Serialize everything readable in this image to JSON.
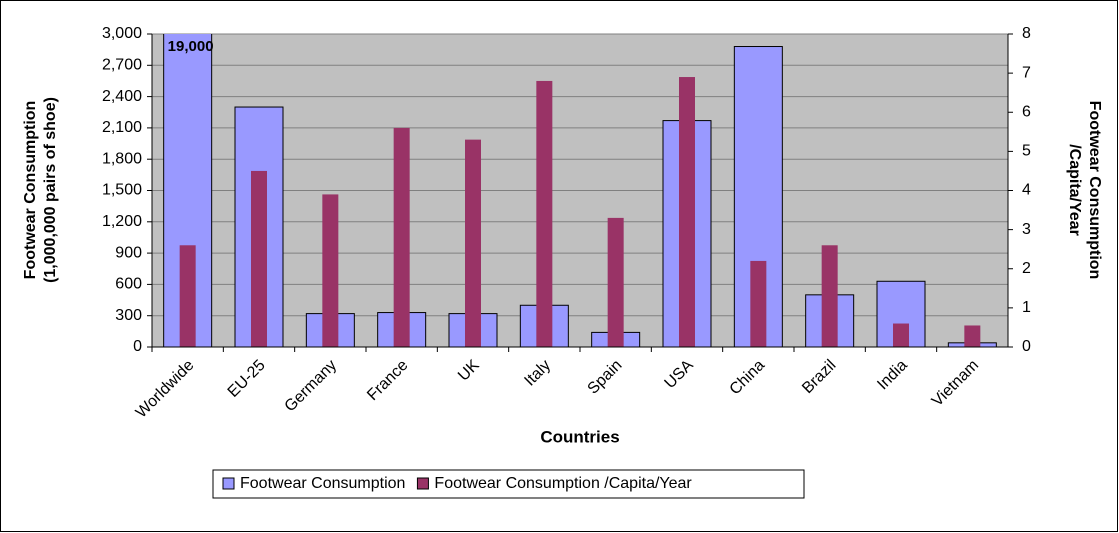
{
  "chart_data": {
    "type": "bar",
    "categories": [
      "Worldwide",
      "EU-25",
      "Germany",
      "France",
      "UK",
      "Italy",
      "Spain",
      "USA",
      "China",
      "Brazil",
      "India",
      "Vietnam"
    ],
    "series": [
      {
        "name": "Footwear Consumption",
        "color": "#9999ff",
        "values": [
          19000,
          2300,
          320,
          330,
          320,
          400,
          140,
          2170,
          2880,
          500,
          630,
          40
        ],
        "value_labels": [
          "19,000",
          null,
          null,
          null,
          null,
          null,
          null,
          null,
          null,
          null,
          null,
          null
        ]
      },
      {
        "name": "Footwear Consumption /Capita/Year",
        "color": "#993366",
        "axis": "y2",
        "values": [
          2.6,
          4.5,
          3.9,
          5.6,
          5.3,
          6.8,
          3.3,
          6.9,
          2.2,
          2.6,
          0.6,
          0.55
        ]
      }
    ],
    "xlabel": "Countries",
    "ylabel": [
      "Footwear Consumption",
      "(1,000,000 pairs of shoe)"
    ],
    "y2label": [
      "Footwear Consumption",
      "/Capita/Year"
    ],
    "ylim": [
      0,
      3000
    ],
    "yticks": [
      0,
      300,
      600,
      900,
      {
        "value": 1200,
        "label": "1,200"
      },
      {
        "value": 1500,
        "label": "1,500"
      },
      {
        "value": 1800,
        "label": "1,800"
      },
      {
        "value": 2100,
        "label": "2,100"
      },
      {
        "value": 2400,
        "label": "2,400"
      },
      {
        "value": 2700,
        "label": "2,700"
      },
      {
        "value": 3000,
        "label": "3,000"
      }
    ],
    "y2lim": [
      0,
      8
    ],
    "y2ticks": [
      0,
      1,
      2,
      3,
      4,
      5,
      6,
      7,
      8
    ],
    "grid": true,
    "legend": "bottom"
  }
}
